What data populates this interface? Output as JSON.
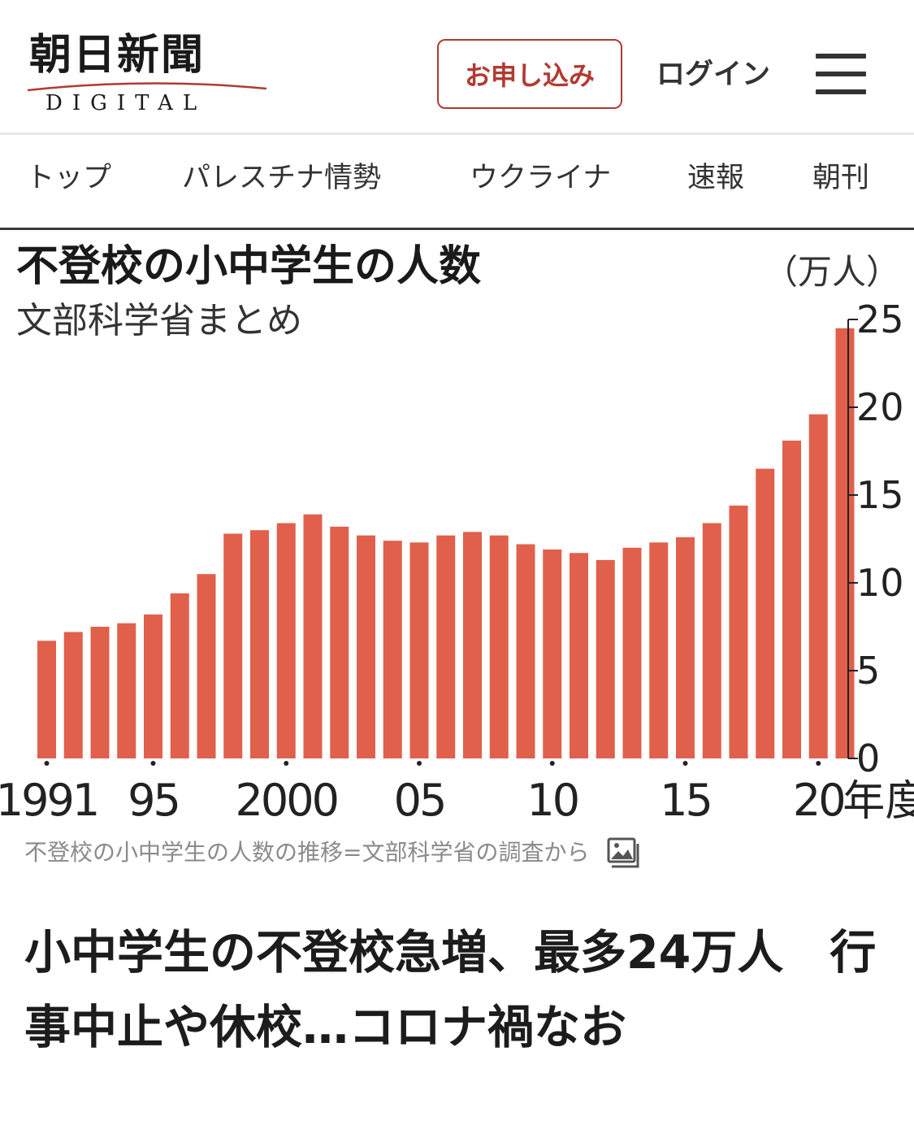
{
  "header": {
    "logo_text": "朝日新聞",
    "logo_sub": "DIGITAL",
    "apply_label": "お申し込み",
    "login_label": "ログイン",
    "menu_icon": "hamburger-menu-icon"
  },
  "nav": {
    "items": [
      {
        "label": "トップ"
      },
      {
        "label": "パレスチナ情勢"
      },
      {
        "label": "ウクライナ"
      },
      {
        "label": "速報"
      },
      {
        "label": "朝刊"
      }
    ]
  },
  "article": {
    "image_caption": "不登校の小中学生の人数の推移=文部科学省の調査から",
    "caption_icon": "image-icon",
    "headline": "小中学生の不登校急増、最多24万人　行事中止や休校…コロナ禍なお"
  },
  "chart_data": {
    "type": "bar",
    "title": "不登校の小中学生の人数",
    "subtitle": "文部科学省まとめ",
    "unit": "（万人）",
    "x_suffix": "年度",
    "bar_color": "#e0604c",
    "categories": [
      1991,
      1992,
      1993,
      1994,
      1995,
      1996,
      1997,
      1998,
      1999,
      2000,
      2001,
      2002,
      2003,
      2004,
      2005,
      2006,
      2007,
      2008,
      2009,
      2010,
      2011,
      2012,
      2013,
      2014,
      2015,
      2016,
      2017,
      2018,
      2019,
      2020,
      2021
    ],
    "values": [
      6.7,
      7.2,
      7.5,
      7.7,
      8.2,
      9.4,
      10.5,
      12.8,
      13.0,
      13.4,
      13.9,
      13.2,
      12.7,
      12.4,
      12.3,
      12.7,
      12.9,
      12.7,
      12.2,
      11.9,
      11.7,
      11.3,
      12.0,
      12.3,
      12.6,
      13.4,
      14.4,
      16.5,
      18.1,
      19.6,
      24.5
    ],
    "x_tick_labels": [
      {
        "year": 1991,
        "label": "1991"
      },
      {
        "year": 1995,
        "label": "95"
      },
      {
        "year": 2000,
        "label": "2000"
      },
      {
        "year": 2005,
        "label": "05"
      },
      {
        "year": 2010,
        "label": "10"
      },
      {
        "year": 2015,
        "label": "15"
      },
      {
        "year": 2020,
        "label": "20"
      }
    ],
    "y_ticks": [
      {
        "value": 0,
        "label": "0"
      },
      {
        "value": 5,
        "label": "5"
      },
      {
        "value": 10,
        "label": "10"
      },
      {
        "value": 15,
        "label": "15"
      },
      {
        "value": 20,
        "label": "20"
      },
      {
        "value": 25,
        "label": "25"
      }
    ],
    "ylim": [
      0,
      25
    ]
  }
}
